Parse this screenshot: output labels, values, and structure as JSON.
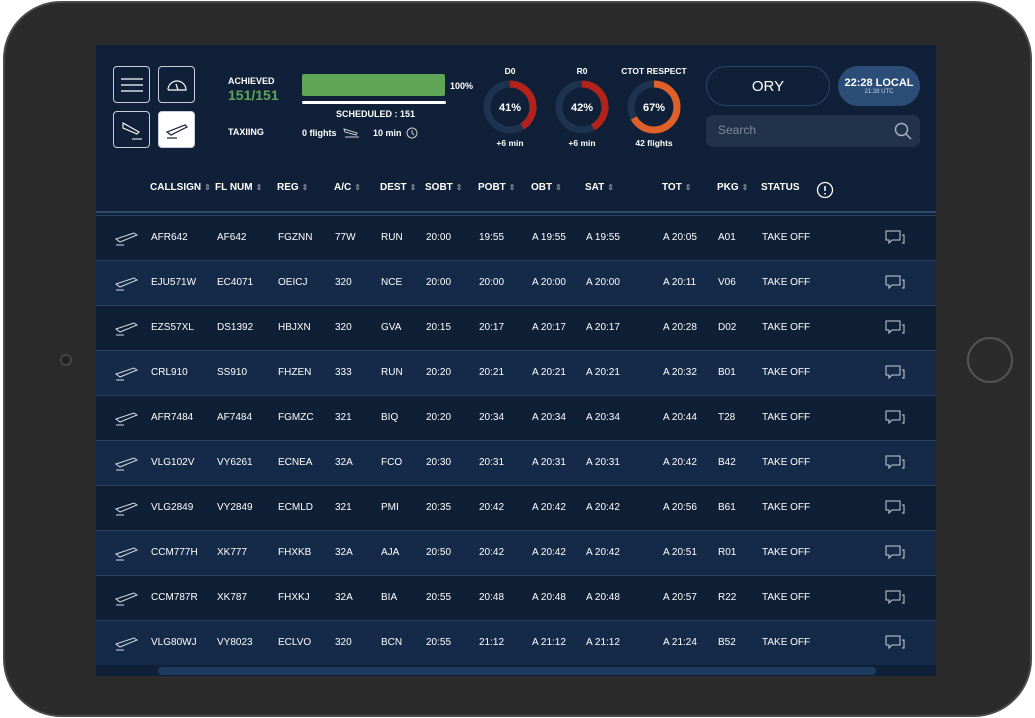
{
  "header": {
    "achieved_label": "ACHIEVED",
    "achieved_value": "151/151",
    "progress_percent": "100%",
    "progress_fraction": 1.0,
    "scheduled_label": "SCHEDULED : 151",
    "taxiing_label": "TAXIING",
    "taxiing_flights": "0 flights",
    "taxiing_time": "10 min",
    "gauges": [
      {
        "title": "D0",
        "value": "41%",
        "fraction": 0.41,
        "sub": "+6 min",
        "color": "#b3231b"
      },
      {
        "title": "R0",
        "value": "42%",
        "fraction": 0.42,
        "sub": "+6 min",
        "color": "#b3231b"
      },
      {
        "title": "CTOT RESPECT",
        "value": "67%",
        "fraction": 0.67,
        "sub": "42 flights",
        "color": "#e0602a"
      }
    ],
    "airport": "ORY",
    "local_time": "22:28 LOCAL",
    "utc_time": "21:28 UTC",
    "search_placeholder": "Search"
  },
  "colors": {
    "accent_green": "#5ea655",
    "bg": "#102038",
    "row_alt": "#152a48"
  },
  "columns": [
    "CALLSIGN",
    "FL NUM",
    "REG",
    "A/C",
    "DEST",
    "SOBT",
    "POBT",
    "OBT",
    "SAT",
    "TOT",
    "PKG",
    "STATUS"
  ],
  "rows": [
    [
      "AFR642",
      "AF642",
      "FGZNN",
      "77W",
      "RUN",
      "20:00",
      "19:55",
      "A 19:55",
      "A 19:55",
      "A 20:05",
      "A01",
      "TAKE OFF"
    ],
    [
      "EJU571W",
      "EC4071",
      "OEICJ",
      "320",
      "NCE",
      "20:00",
      "20:00",
      "A 20:00",
      "A 20:00",
      "A 20:11",
      "V06",
      "TAKE OFF"
    ],
    [
      "EZS57XL",
      "DS1392",
      "HBJXN",
      "320",
      "GVA",
      "20:15",
      "20:17",
      "A 20:17",
      "A 20:17",
      "A 20:28",
      "D02",
      "TAKE OFF"
    ],
    [
      "CRL910",
      "SS910",
      "FHZEN",
      "333",
      "RUN",
      "20:20",
      "20:21",
      "A 20:21",
      "A 20:21",
      "A 20:32",
      "B01",
      "TAKE OFF"
    ],
    [
      "AFR7484",
      "AF7484",
      "FGMZC",
      "321",
      "BIQ",
      "20:20",
      "20:34",
      "A 20:34",
      "A 20:34",
      "A 20:44",
      "T28",
      "TAKE OFF"
    ],
    [
      "VLG102V",
      "VY6261",
      "ECNEA",
      "32A",
      "FCO",
      "20:30",
      "20:31",
      "A 20:31",
      "A 20:31",
      "A 20:42",
      "B42",
      "TAKE OFF"
    ],
    [
      "VLG2849",
      "VY2849",
      "ECMLD",
      "321",
      "PMI",
      "20:35",
      "20:42",
      "A 20:42",
      "A 20:42",
      "A 20:56",
      "B61",
      "TAKE OFF"
    ],
    [
      "CCM777H",
      "XK777",
      "FHXKB",
      "32A",
      "AJA",
      "20:50",
      "20:42",
      "A 20:42",
      "A 20:42",
      "A 20:51",
      "R01",
      "TAKE OFF"
    ],
    [
      "CCM787R",
      "XK787",
      "FHXKJ",
      "32A",
      "BIA",
      "20:55",
      "20:48",
      "A 20:48",
      "A 20:48",
      "A 20:57",
      "R22",
      "TAKE OFF"
    ],
    [
      "VLG80WJ",
      "VY8023",
      "ECLVO",
      "320",
      "BCN",
      "20:55",
      "21:12",
      "A 21:12",
      "A 21:12",
      "A 21:24",
      "B52",
      "TAKE OFF"
    ]
  ]
}
